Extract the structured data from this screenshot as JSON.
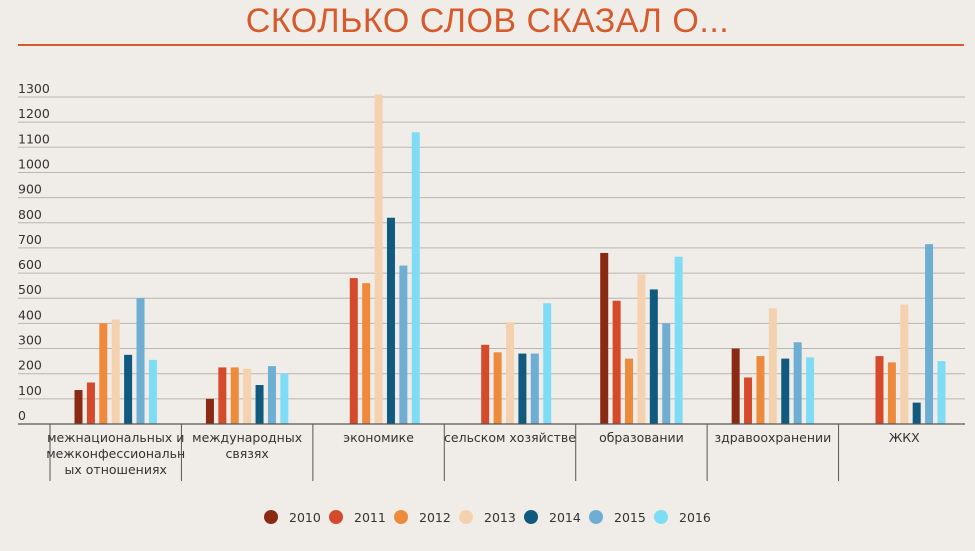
{
  "chart_data": {
    "type": "bar",
    "title": "СКОЛЬКО СЛОВ СКАЗАЛ О...",
    "xlabel": "",
    "ylabel": "",
    "ylim": [
      0,
      1350
    ],
    "yticks": [
      0,
      100,
      200,
      300,
      400,
      500,
      600,
      700,
      800,
      900,
      1000,
      1100,
      1200,
      1300
    ],
    "grid": true,
    "legend_position": "bottom",
    "categories": [
      [
        "межнациональных и",
        "межконфессиональн",
        "ых отношениях"
      ],
      [
        "международных",
        "связях"
      ],
      [
        "экономике"
      ],
      [
        "сельском хозяйстве"
      ],
      [
        "образовании"
      ],
      [
        "здравоохранении"
      ],
      [
        "ЖКХ"
      ]
    ],
    "series": [
      {
        "name": "2010",
        "color": "#8a2a12",
        "values": [
          135,
          100,
          null,
          null,
          680,
          300,
          null
        ]
      },
      {
        "name": "2011",
        "color": "#d44a2a",
        "values": [
          165,
          225,
          580,
          315,
          490,
          185,
          270
        ]
      },
      {
        "name": "2012",
        "color": "#ee8a3c",
        "values": [
          400,
          225,
          560,
          285,
          260,
          270,
          245
        ]
      },
      {
        "name": "2013",
        "color": "#f4d2b0",
        "values": [
          415,
          220,
          1310,
          405,
          595,
          460,
          475
        ]
      },
      {
        "name": "2014",
        "color": "#0f5a7e",
        "values": [
          275,
          155,
          820,
          280,
          535,
          260,
          85
        ]
      },
      {
        "name": "2015",
        "color": "#6eaed3",
        "values": [
          500,
          230,
          630,
          280,
          400,
          325,
          715
        ]
      },
      {
        "name": "2016",
        "color": "#7fdcf5",
        "values": [
          255,
          200,
          1160,
          480,
          665,
          265,
          250
        ]
      }
    ]
  }
}
